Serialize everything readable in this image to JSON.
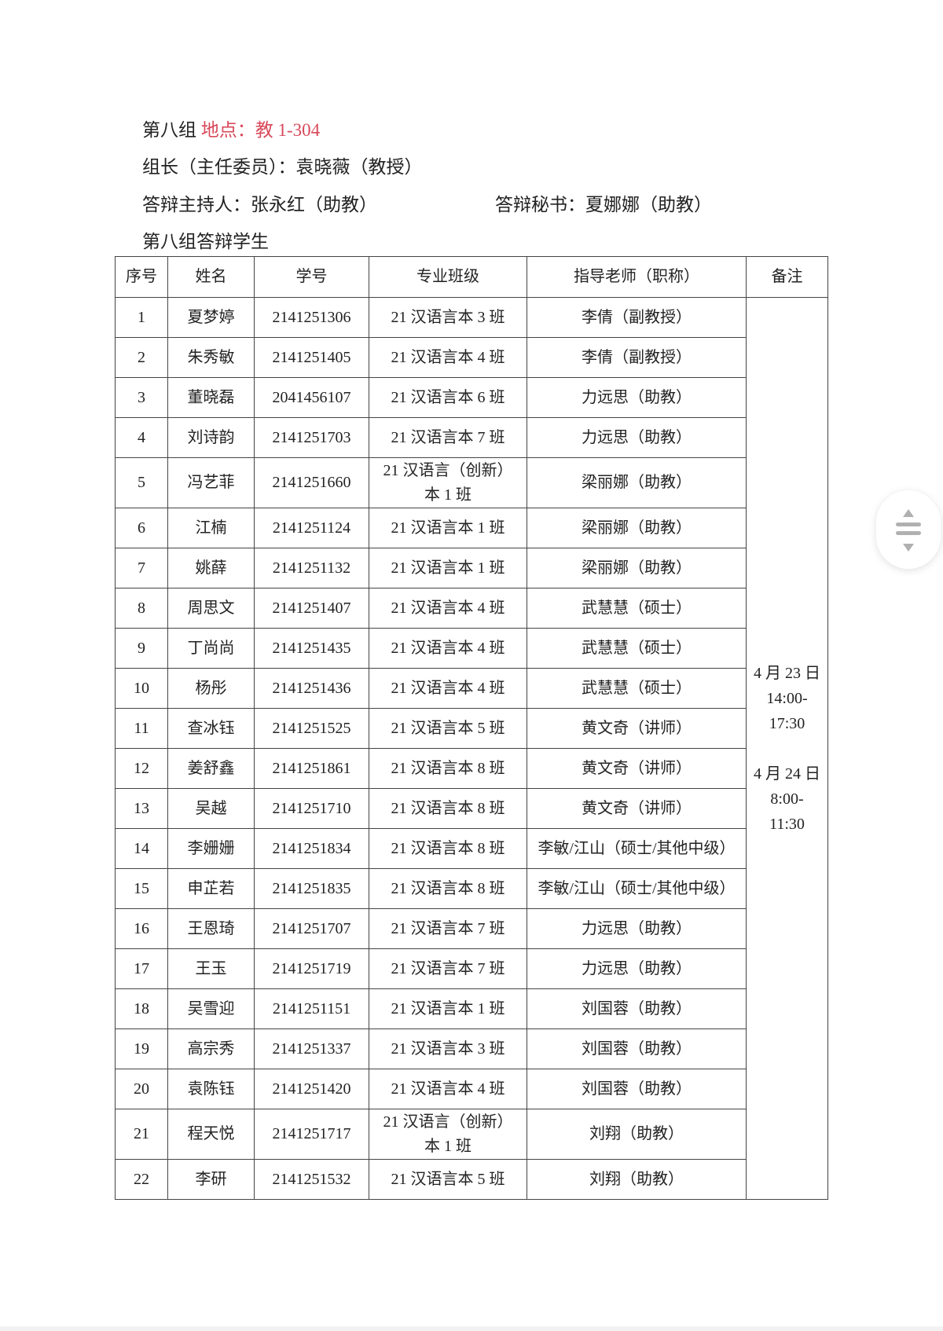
{
  "heading": {
    "group": "第八组",
    "location": "地点：教 1-304",
    "location_color": "#d9485a"
  },
  "leader": "组长（主任委员）：袁晓薇（教授）",
  "host": "答辩主持人：张永红（助教）",
  "secretary": "答辩秘书：夏娜娜（助教）",
  "students_title": "第八组答辩学生",
  "table": {
    "headers": [
      "序号",
      "姓名",
      "学号",
      "专业班级",
      "指导老师（职称）",
      "备注"
    ],
    "rows": [
      [
        "1",
        "夏梦婷",
        "2141251306",
        "21 汉语言本 3 班",
        "李倩（副教授）"
      ],
      [
        "2",
        "朱秀敏",
        "2141251405",
        "21 汉语言本 4 班",
        "李倩（副教授）"
      ],
      [
        "3",
        "董晓磊",
        "2041456107",
        "21 汉语言本 6 班",
        "力远思（助教）"
      ],
      [
        "4",
        "刘诗韵",
        "2141251703",
        "21 汉语言本 7 班",
        "力远思（助教）"
      ],
      [
        "5",
        "冯艺菲",
        "2141251660",
        "21 汉语言（创新）本 1 班",
        "梁丽娜（助教）"
      ],
      [
        "6",
        "江楠",
        "2141251124",
        "21 汉语言本 1 班",
        "梁丽娜（助教）"
      ],
      [
        "7",
        "姚薛",
        "2141251132",
        "21 汉语言本 1 班",
        "梁丽娜（助教）"
      ],
      [
        "8",
        "周思文",
        "2141251407",
        "21 汉语言本 4 班",
        "武慧慧（硕士）"
      ],
      [
        "9",
        "丁尚尚",
        "2141251435",
        "21 汉语言本 4 班",
        "武慧慧（硕士）"
      ],
      [
        "10",
        "杨彤",
        "2141251436",
        "21 汉语言本 4 班",
        "武慧慧（硕士）"
      ],
      [
        "11",
        "查冰钰",
        "2141251525",
        "21 汉语言本 5 班",
        "黄文奇（讲师）"
      ],
      [
        "12",
        "姜舒鑫",
        "2141251861",
        "21 汉语言本 8 班",
        "黄文奇（讲师）"
      ],
      [
        "13",
        "吴越",
        "2141251710",
        "21 汉语言本 8 班",
        "黄文奇（讲师）"
      ],
      [
        "14",
        "李姗姗",
        "2141251834",
        "21 汉语言本 8 班",
        "李敏/江山（硕士/其他中级）"
      ],
      [
        "15",
        "申芷若",
        "2141251835",
        "21 汉语言本 8 班",
        "李敏/江山（硕士/其他中级）"
      ],
      [
        "16",
        "王恩琦",
        "2141251707",
        "21 汉语言本 7 班",
        "力远思（助教）"
      ],
      [
        "17",
        "王玉",
        "2141251719",
        "21 汉语言本 7 班",
        "力远思（助教）"
      ],
      [
        "18",
        "吴雪迎",
        "2141251151",
        "21 汉语言本 1 班",
        "刘国蓉（助教）"
      ],
      [
        "19",
        "高宗秀",
        "2141251337",
        "21 汉语言本 3 班",
        "刘国蓉（助教）"
      ],
      [
        "20",
        "袁陈钰",
        "2141251420",
        "21 汉语言本 4 班",
        "刘国蓉（助教）"
      ],
      [
        "21",
        "程天悦",
        "2141251717",
        "21 汉语言（创新）本 1 班",
        "刘翔（助教）"
      ],
      [
        "22",
        "李研",
        "2141251532",
        "21 汉语言本 5 班",
        "刘翔（助教）"
      ]
    ],
    "remarks": [
      [
        "4 月 23 日",
        "14:00-",
        "17:30"
      ],
      [
        "4 月 24 日",
        "8:00-",
        "11:30"
      ]
    ]
  },
  "scroll_control": {
    "icon": "scroll-up-down-icon"
  }
}
